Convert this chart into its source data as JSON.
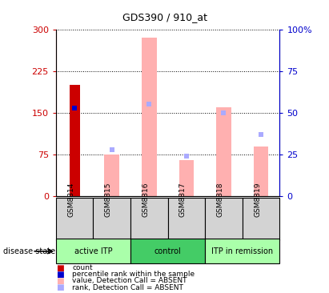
{
  "title": "GDS390 / 910_at",
  "samples": [
    "GSM8814",
    "GSM8815",
    "GSM8816",
    "GSM8817",
    "GSM8818",
    "GSM8819"
  ],
  "count_value": 200,
  "count_sample_idx": 0,
  "rank_value_pct": 53,
  "rank_sample_idx": 0,
  "absent_values": [
    null,
    75,
    285,
    65,
    160,
    90
  ],
  "absent_rank_pct": [
    null,
    28,
    55,
    24,
    50,
    37
  ],
  "ylim_left": [
    0,
    300
  ],
  "ylim_right": [
    0,
    100
  ],
  "yticks_left": [
    0,
    75,
    150,
    225,
    300
  ],
  "yticks_right": [
    0,
    25,
    50,
    75,
    100
  ],
  "ytick_labels_left": [
    "0",
    "75",
    "150",
    "225",
    "300"
  ],
  "ytick_labels_right": [
    "0",
    "25",
    "50",
    "75",
    "100%"
  ],
  "bar_color_count": "#cc0000",
  "bar_color_rank": "#0000cc",
  "bar_color_absent_value": "#ffb0b0",
  "bar_color_absent_rank": "#aaaaff",
  "legend_labels": [
    "count",
    "percentile rank within the sample",
    "value, Detection Call = ABSENT",
    "rank, Detection Call = ABSENT"
  ],
  "legend_colors": [
    "#cc0000",
    "#0000cc",
    "#ffb0b0",
    "#aaaaff"
  ],
  "disease_state_label": "disease state",
  "group_ranges": [
    [
      0,
      2,
      "active ITP",
      "#aaffaa"
    ],
    [
      2,
      4,
      "control",
      "#44cc66"
    ],
    [
      4,
      6,
      "ITP in remission",
      "#aaffaa"
    ]
  ],
  "sample_box_bg": "#d3d3d3",
  "axis_color_left": "#cc0000",
  "axis_color_right": "#0000cc",
  "figsize": [
    4.11,
    3.66
  ],
  "dpi": 100
}
